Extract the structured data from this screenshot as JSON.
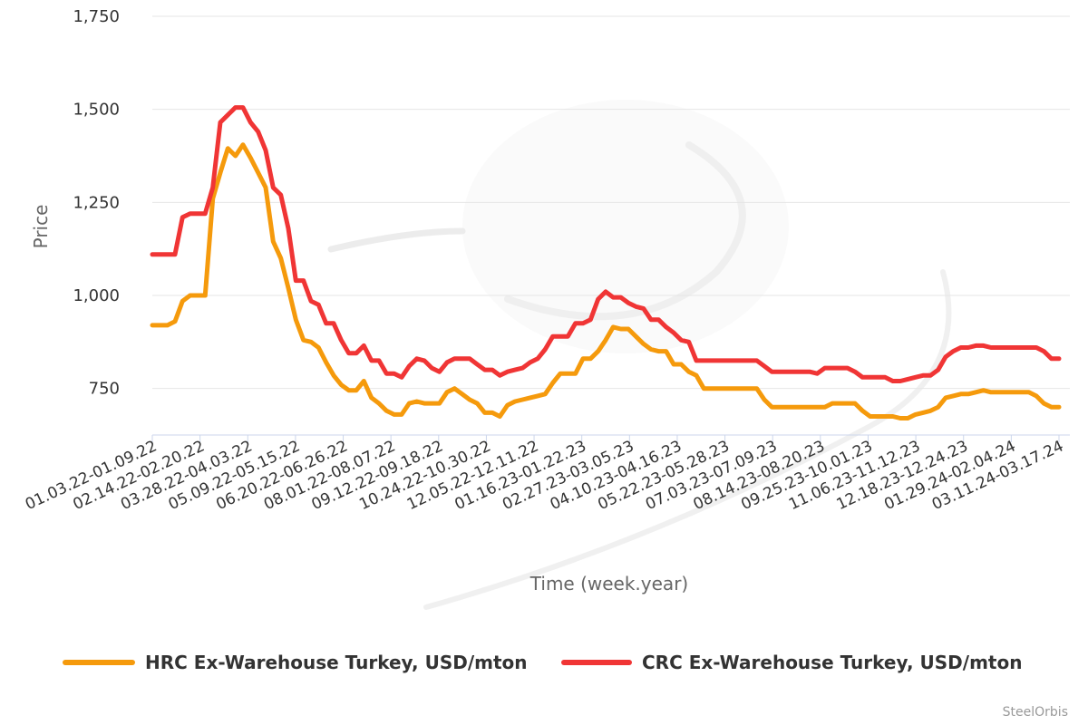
{
  "chart_data": {
    "type": "line",
    "title": "",
    "xlabel": "Time (week.year)",
    "ylabel": "Price",
    "ylim": [
      625,
      1750
    ],
    "y_ticks": [
      750,
      1000,
      1250,
      1500,
      1750
    ],
    "y_tick_labels": [
      "750",
      "1,000",
      "1,250",
      "1,500",
      "1,750"
    ],
    "grid": true,
    "legend": "bottom",
    "x_tick_labels": [
      "01.03.22-01.09.22",
      "02.14.22-02.20.22",
      "03.28.22-04.03.22",
      "05.09.22-05.15.22",
      "06.20.22-06.26.22",
      "08.01.22-08.07.22",
      "09.12.22-09.18.22",
      "10.24.22-10.30.22",
      "12.05.22-12.11.22",
      "01.16.23-01.22.23",
      "02.27.23-03.05.23",
      "04.10.23-04.16.23",
      "05.22.23-05.28.23",
      "07.03.23-07.09.23",
      "08.14.23-08.20.23",
      "09.25.23-10.01.23",
      "11.06.23-11.12.23",
      "12.18.23-12.24.23",
      "01.29.24-02.04.24",
      "03.11.24-03.17.24"
    ],
    "series": [
      {
        "name": "HRC Ex-Warehouse Turkey, USD/mton",
        "color": "#f59a0c",
        "values": [
          920,
          920,
          920,
          930,
          985,
          1000,
          1000,
          1000,
          1260,
          1330,
          1395,
          1375,
          1405,
          1370,
          1330,
          1290,
          1145,
          1100,
          1020,
          935,
          880,
          875,
          860,
          820,
          785,
          760,
          745,
          745,
          770,
          725,
          710,
          690,
          680,
          680,
          710,
          715,
          710,
          710,
          710,
          740,
          750,
          735,
          720,
          710,
          685,
          685,
          675,
          705,
          715,
          720,
          725,
          730,
          735,
          765,
          790,
          790,
          790,
          830,
          830,
          850,
          880,
          915,
          910,
          910,
          890,
          870,
          855,
          850,
          850,
          815,
          815,
          795,
          785,
          750,
          750,
          750,
          750,
          750,
          750,
          750,
          750,
          720,
          700,
          700,
          700,
          700,
          700,
          700,
          700,
          700,
          710,
          710,
          710,
          710,
          690,
          675,
          675,
          675,
          675,
          670,
          670,
          680,
          685,
          690,
          700,
          725,
          730,
          735,
          735,
          740,
          745,
          740,
          740,
          740,
          740,
          740,
          740,
          730,
          710,
          700,
          700
        ]
      },
      {
        "name": "CRC Ex-Warehouse Turkey, USD/mton",
        "color": "#f03535",
        "values": [
          1110,
          1110,
          1110,
          1110,
          1210,
          1220,
          1220,
          1220,
          1290,
          1465,
          1485,
          1505,
          1505,
          1465,
          1440,
          1390,
          1290,
          1270,
          1180,
          1040,
          1040,
          985,
          975,
          925,
          925,
          880,
          845,
          845,
          865,
          825,
          825,
          790,
          790,
          780,
          810,
          830,
          825,
          805,
          795,
          820,
          830,
          830,
          830,
          815,
          800,
          800,
          785,
          795,
          800,
          805,
          820,
          830,
          855,
          890,
          890,
          890,
          925,
          925,
          935,
          990,
          1010,
          995,
          995,
          980,
          970,
          965,
          935,
          935,
          915,
          900,
          880,
          875,
          825,
          825,
          825,
          825,
          825,
          825,
          825,
          825,
          825,
          810,
          795,
          795,
          795,
          795,
          795,
          795,
          790,
          805,
          805,
          805,
          805,
          795,
          780,
          780,
          780,
          780,
          770,
          770,
          775,
          780,
          785,
          785,
          800,
          835,
          850,
          860,
          860,
          865,
          865,
          860,
          860,
          860,
          860,
          860,
          860,
          860,
          850,
          830,
          830
        ]
      }
    ],
    "credit": "SteelOrbis"
  }
}
